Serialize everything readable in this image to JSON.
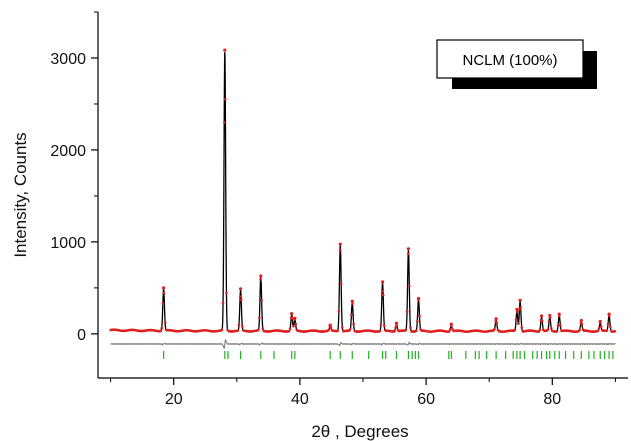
{
  "chart_data": {
    "type": "line",
    "title": "",
    "xlabel": "2θ , Degrees",
    "ylabel": "Intensity, Counts",
    "xlim": [
      8,
      92
    ],
    "ylim": [
      -480,
      3500
    ],
    "x_ticks": [
      20,
      40,
      60,
      80
    ],
    "y_ticks": [
      0,
      1000,
      2000,
      3000
    ],
    "grid": false,
    "legend": {
      "placement": "top-right",
      "label": "NCLM (100%)"
    },
    "background_level": 30,
    "difference_offset": -110,
    "peaks": [
      {
        "two_theta": 18.4,
        "intensity": 455
      },
      {
        "two_theta": 28.1,
        "intensity": 3040
      },
      {
        "two_theta": 30.6,
        "intensity": 445
      },
      {
        "two_theta": 33.8,
        "intensity": 585
      },
      {
        "two_theta": 38.7,
        "intensity": 175
      },
      {
        "two_theta": 39.2,
        "intensity": 125
      },
      {
        "two_theta": 44.8,
        "intensity": 50
      },
      {
        "two_theta": 46.4,
        "intensity": 930
      },
      {
        "two_theta": 48.3,
        "intensity": 310
      },
      {
        "two_theta": 53.1,
        "intensity": 520
      },
      {
        "two_theta": 55.3,
        "intensity": 70
      },
      {
        "two_theta": 57.2,
        "intensity": 880
      },
      {
        "two_theta": 58.8,
        "intensity": 340
      },
      {
        "two_theta": 64.0,
        "intensity": 60
      },
      {
        "two_theta": 71.1,
        "intensity": 120
      },
      {
        "two_theta": 74.4,
        "intensity": 220
      },
      {
        "two_theta": 74.9,
        "intensity": 320
      },
      {
        "two_theta": 78.3,
        "intensity": 150
      },
      {
        "two_theta": 79.6,
        "intensity": 155
      },
      {
        "two_theta": 81.1,
        "intensity": 170
      },
      {
        "two_theta": 84.6,
        "intensity": 100
      },
      {
        "two_theta": 87.6,
        "intensity": 90
      },
      {
        "two_theta": 89.0,
        "intensity": 170
      }
    ],
    "reflection_positions": [
      18.4,
      28.1,
      28.6,
      30.6,
      33.8,
      35.9,
      38.7,
      39.2,
      44.8,
      46.4,
      48.3,
      50.9,
      53.1,
      53.6,
      55.3,
      57.2,
      57.8,
      58.3,
      58.8,
      63.6,
      64.0,
      66.3,
      67.8,
      68.4,
      69.6,
      71.1,
      72.6,
      73.8,
      74.4,
      74.9,
      75.6,
      76.9,
      77.6,
      78.3,
      79.1,
      79.6,
      80.4,
      81.1,
      82.1,
      83.4,
      84.6,
      85.8,
      86.6,
      87.6,
      88.3,
      89.0,
      89.6
    ],
    "colors": {
      "observed": "#e02020",
      "calculated": "#000000",
      "difference": "#808080",
      "reflections": "#20b020",
      "axis": "#000000"
    }
  }
}
